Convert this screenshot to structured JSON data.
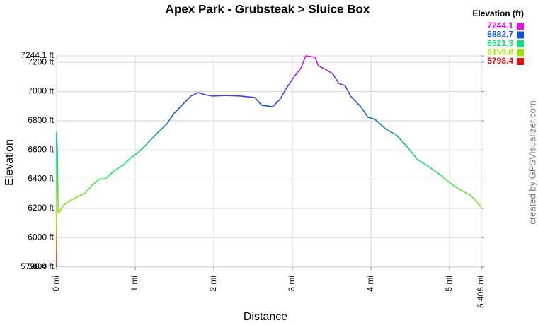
{
  "chart_data": {
    "type": "line",
    "title": "Apex Park - Grubsteak > Sluice Box",
    "x_label": "Distance",
    "y_label": "Elevation",
    "credit": "created by GPSVisualizer.com",
    "color_scale": {
      "title": "Elevation (ft)",
      "stops": [
        {
          "value": 7244.1,
          "color": "#e010e0"
        },
        {
          "value": 6882.7,
          "color": "#1050e0"
        },
        {
          "value": 6521.3,
          "color": "#10e080"
        },
        {
          "value": 6159.8,
          "color": "#a0e010"
        },
        {
          "value": 5798.4,
          "color": "#e01010"
        }
      ]
    },
    "x": [
      0,
      0,
      0.01,
      0.02,
      0.03,
      0.09,
      0.18,
      0.32,
      0.36,
      0.45,
      0.54,
      0.63,
      0.72,
      0.86,
      0.95,
      1.04,
      1.13,
      1.26,
      1.4,
      1.49,
      1.62,
      1.71,
      1.8,
      1.89,
      1.98,
      2.16,
      2.34,
      2.52,
      2.61,
      2.75,
      2.84,
      2.93,
      3.02,
      3.11,
      3.17,
      3.29,
      3.33,
      3.42,
      3.51,
      3.59,
      3.67,
      3.74,
      3.87,
      3.96,
      4.05,
      4.19,
      4.32,
      4.46,
      4.59,
      4.73,
      4.86,
      5.0,
      5.13,
      5.27,
      5.405
    ],
    "series": [
      {
        "name": "Elevation",
        "values": [
          5798.4,
          6720,
          6580,
          6180,
          6170,
          6222,
          6255,
          6294,
          6304,
          6357,
          6400,
          6405,
          6453,
          6501,
          6549,
          6583,
          6631,
          6704,
          6776,
          6848,
          6920,
          6969,
          6993,
          6978,
          6969,
          6973,
          6969,
          6959,
          6906,
          6896,
          6945,
          7027,
          7099,
          7161,
          7244.1,
          7234,
          7176,
          7152,
          7123,
          7055,
          7041,
          6969,
          6896,
          6824,
          6810,
          6742,
          6704,
          6622,
          6535,
          6487,
          6439,
          6376,
          6328,
          6289,
          6207
        ]
      }
    ],
    "xlim": [
      0,
      5.405
    ],
    "xticks": [
      {
        "value": 0,
        "label": "0 mi"
      },
      {
        "value": 1,
        "label": "1 mi"
      },
      {
        "value": 2,
        "label": "2 mi"
      },
      {
        "value": 3,
        "label": "3 mi"
      },
      {
        "value": 4,
        "label": "4 mi"
      },
      {
        "value": 5,
        "label": "5 mi"
      },
      {
        "value": 5.405,
        "label": "5.405 mi"
      }
    ],
    "ylim": [
      5798.4,
      7244.1
    ],
    "yticks": [
      {
        "value": 5798.4,
        "label": "5798.4 ft"
      },
      {
        "value": 5800,
        "label": "5800 ft"
      },
      {
        "value": 6000,
        "label": "6000 ft"
      },
      {
        "value": 6200,
        "label": "6200 ft"
      },
      {
        "value": 6400,
        "label": "6400 ft"
      },
      {
        "value": 6600,
        "label": "6600 ft"
      },
      {
        "value": 6800,
        "label": "6800 ft"
      },
      {
        "value": 7000,
        "label": "7000 ft"
      },
      {
        "value": 7200,
        "label": "7200 ft"
      },
      {
        "value": 7244.1,
        "label": "7244.1 ft"
      }
    ],
    "grid": true
  }
}
